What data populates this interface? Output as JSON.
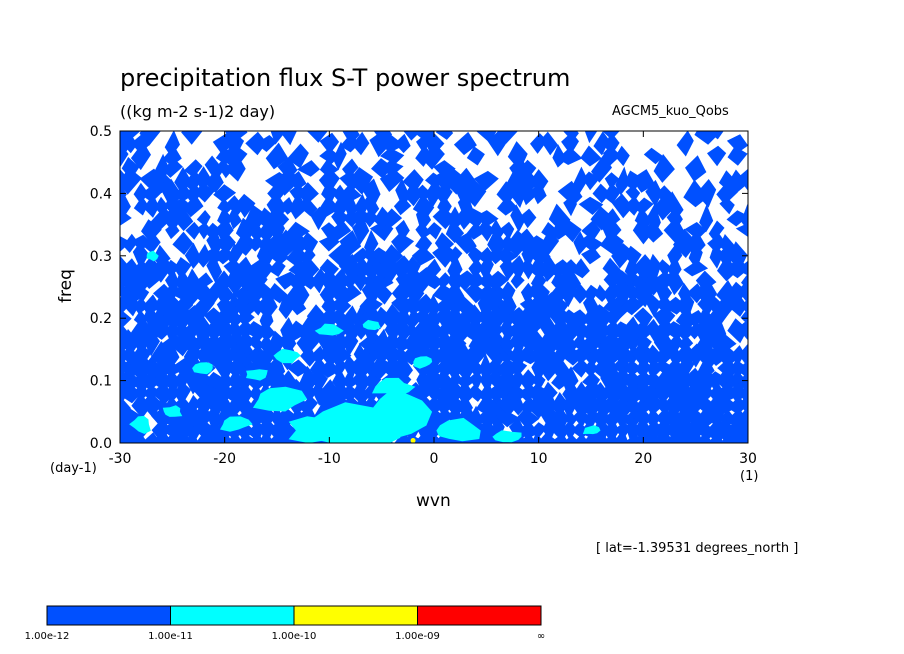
{
  "title": "precipitation flux S-T power spectrum",
  "units": "((kg m-2 s-1)2 day)",
  "model": "AGCM5_kuo_Qobs",
  "latitude_note": "[ lat=-1.39531 degrees_north ]",
  "chart_data": {
    "type": "heatmap",
    "xlabel": "wvn",
    "ylabel": "freq",
    "x_unit": "(1)",
    "y_unit": "(day-1)",
    "xlim": [
      -30,
      30
    ],
    "ylim": [
      0,
      0.5
    ],
    "x_ticks": [
      -30,
      -20,
      -10,
      0,
      10,
      20,
      30
    ],
    "y_ticks": [
      "0.0",
      "0.1",
      "0.2",
      "0.3",
      "0.4",
      "0.5"
    ],
    "colorbar": {
      "bins": [
        {
          "from": "1.00e-12",
          "to": "1.00e-11",
          "color": "#0050ff"
        },
        {
          "from": "1.00e-11",
          "to": "1.00e-10",
          "color": "#00ffff"
        },
        {
          "from": "1.00e-10",
          "to": "1.00e-09",
          "color": "#ffff00"
        },
        {
          "from": "1.00e-09",
          "to": "∞",
          "color": "#ff0000"
        }
      ],
      "labels": [
        "1.00e-12",
        "1.00e-11",
        "1.00e-10",
        "1.00e-09",
        "∞"
      ]
    },
    "background_color": "#ffffff",
    "pattern": "noisy white/blue patches above 0.2 day-1; dense blue below 0.2 day-1; cyan (1e-11 to 1e-10) patches mostly at freq < 0.1 around wvn -15 to 5; a tiny yellow spot near wvn -2, freq 0"
  }
}
